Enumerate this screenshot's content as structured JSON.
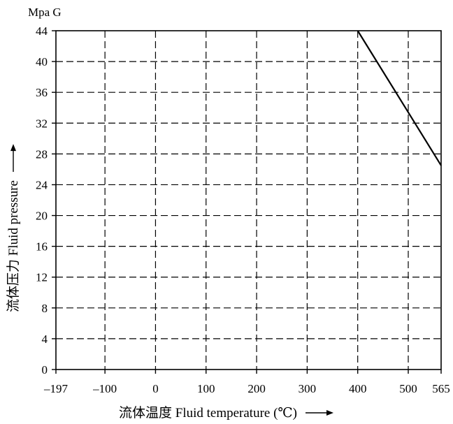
{
  "chart_data": {
    "type": "line",
    "unit_label": "Mpa G",
    "ylabel": "流体压力 Fluid pressure",
    "xlabel": "流体温度 Fluid temperature (℃)",
    "xlim": [
      -197,
      565
    ],
    "ylim": [
      0,
      44
    ],
    "x_ticks": [
      -197,
      -100,
      0,
      100,
      200,
      300,
      400,
      500,
      565
    ],
    "x_tick_labels": [
      "–197",
      "–100",
      "0",
      "100",
      "200",
      "300",
      "400",
      "500",
      "565"
    ],
    "y_ticks": [
      0,
      4,
      8,
      12,
      16,
      20,
      24,
      28,
      32,
      36,
      40,
      44
    ],
    "y_tick_labels": [
      "0",
      "4",
      "8",
      "12",
      "16",
      "20",
      "24",
      "28",
      "32",
      "36",
      "40",
      "44"
    ],
    "grid": true,
    "grid_style": "dashed",
    "legend": "none",
    "series": [
      {
        "x": [
          400,
          500,
          565
        ],
        "y": [
          44,
          33.4,
          26.5
        ]
      }
    ]
  },
  "colors": {
    "background": "#ffffff",
    "line": "#000000",
    "grid": "#000000",
    "text": "#000000"
  },
  "icons": {
    "x_axis_arrow": "long-arrow-right-icon",
    "y_axis_arrow": "long-arrow-up-icon"
  }
}
